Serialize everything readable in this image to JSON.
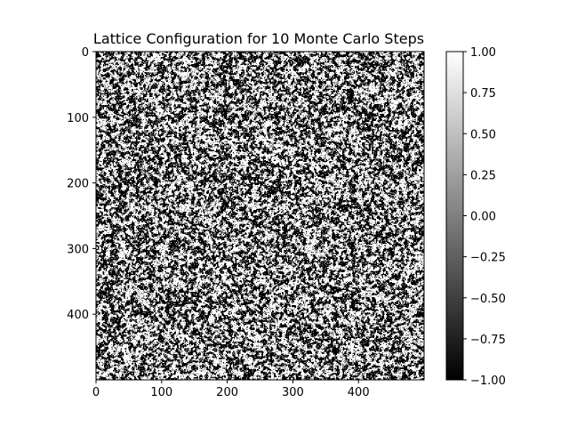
{
  "chart_data": {
    "type": "heatmap",
    "title": "Lattice Configuration for 10 Monte Carlo Steps",
    "xlabel": "",
    "ylabel": "",
    "lattice_size": 500,
    "spin_values": [
      -1,
      1
    ],
    "colormap": "gray",
    "colors": {
      "low": "#000000",
      "high": "#ffffff",
      "axis": "#000000"
    },
    "x_ticks": [
      0,
      100,
      200,
      300,
      400
    ],
    "y_ticks": [
      0,
      100,
      200,
      300,
      400
    ],
    "xlim": [
      0,
      500
    ],
    "ylim": [
      500,
      0
    ],
    "colorbar": {
      "range": [
        -1.0,
        1.0
      ],
      "ticks": [
        1.0,
        0.75,
        0.5,
        0.25,
        0.0,
        -0.25,
        -0.5,
        -0.75,
        -1.0
      ],
      "tick_labels": [
        "1.00",
        "0.75",
        "0.50",
        "0.25",
        "0.00",
        "−0.25",
        "−0.50",
        "−0.75",
        "−1.00"
      ]
    },
    "grid": false
  }
}
